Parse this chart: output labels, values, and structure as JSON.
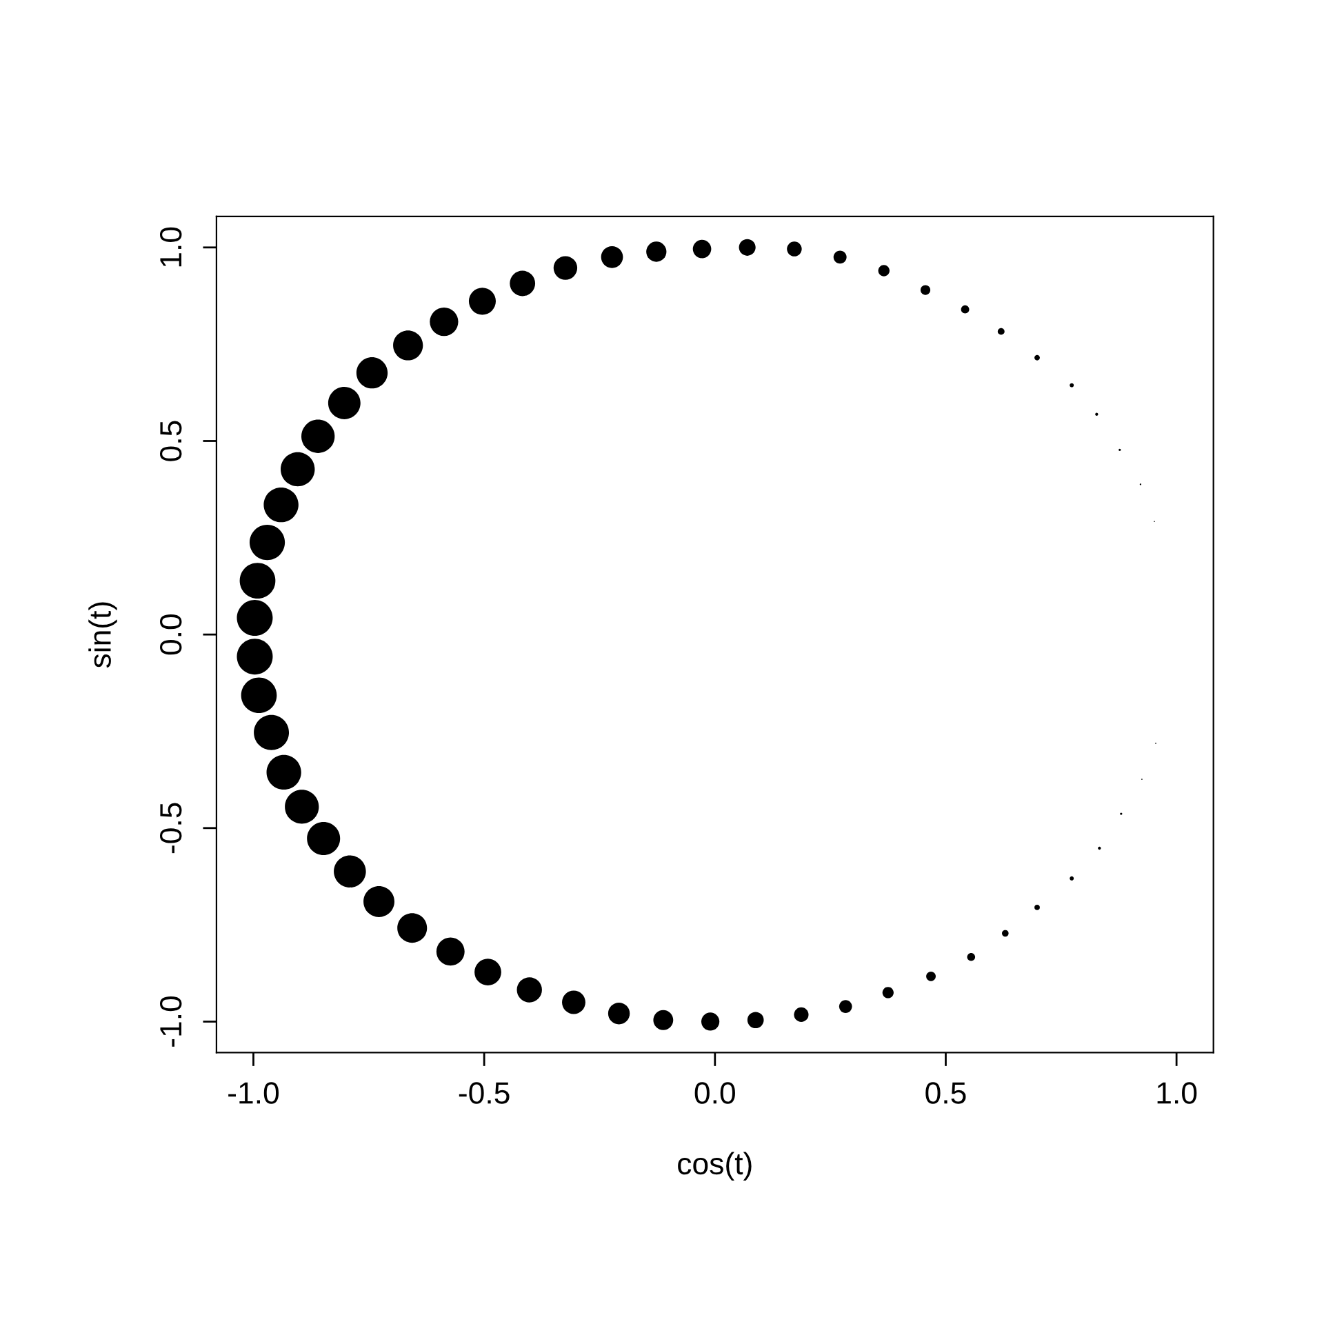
{
  "chart_data": {
    "type": "bubble",
    "xlabel": "cos(t)",
    "ylabel": "sin(t)",
    "color": "#000000",
    "marker": "circle",
    "grid": false,
    "legend": false,
    "x": [
      0.952,
      0.922,
      0.877,
      0.827,
      0.773,
      0.698,
      0.62,
      0.542,
      0.456,
      0.366,
      0.271,
      0.172,
      0.07,
      -0.028,
      -0.127,
      -0.223,
      -0.324,
      -0.417,
      -0.504,
      -0.587,
      -0.665,
      -0.743,
      -0.803,
      -0.86,
      -0.904,
      -0.94,
      -0.97,
      -0.991,
      -0.997,
      -0.997,
      -0.988,
      -0.961,
      -0.934,
      -0.895,
      -0.848,
      -0.791,
      -0.728,
      -0.656,
      -0.573,
      -0.492,
      -0.402,
      -0.306,
      -0.208,
      -0.112,
      -0.01,
      0.088,
      0.187,
      0.283,
      0.375,
      0.468,
      0.555,
      0.629,
      0.698,
      0.773,
      0.833,
      0.88,
      0.925,
      0.955
    ],
    "values": [
      0.292,
      0.388,
      0.477,
      0.569,
      0.644,
      0.715,
      0.783,
      0.84,
      0.89,
      0.94,
      0.975,
      0.996,
      1.0,
      0.996,
      0.989,
      0.975,
      0.947,
      0.907,
      0.861,
      0.808,
      0.747,
      0.676,
      0.598,
      0.512,
      0.427,
      0.335,
      0.238,
      0.139,
      0.043,
      -0.057,
      -0.157,
      -0.253,
      -0.356,
      -0.445,
      -0.527,
      -0.612,
      -0.69,
      -0.758,
      -0.819,
      -0.872,
      -0.918,
      -0.95,
      -0.979,
      -0.996,
      -1.0,
      -0.996,
      -0.982,
      -0.961,
      -0.925,
      -0.883,
      -0.833,
      -0.772,
      -0.705,
      -0.63,
      -0.552,
      -0.463,
      -0.374,
      -0.281
    ],
    "sizes": [
      0.001,
      0.002,
      0.004,
      0.007,
      0.013,
      0.023,
      0.036,
      0.052,
      0.074,
      0.1,
      0.133,
      0.171,
      0.216,
      0.264,
      0.318,
      0.374,
      0.438,
      0.502,
      0.566,
      0.63,
      0.693,
      0.76,
      0.813,
      0.865,
      0.906,
      0.941,
      0.97,
      0.991,
      1,
      1,
      0.988,
      0.961,
      0.935,
      0.898,
      0.854,
      0.802,
      0.746,
      0.686,
      0.619,
      0.557,
      0.491,
      0.426,
      0.365,
      0.309,
      0.255,
      0.208,
      0.165,
      0.129,
      0.098,
      0.071,
      0.05,
      0.034,
      0.023,
      0.013,
      0.007,
      0.004,
      0.001,
      0.001
    ],
    "xlim": [
      -1.08,
      1.08
    ],
    "ylim": [
      -1.08,
      1.08
    ],
    "xticks": [
      {
        "value": -1,
        "label": "-1.0"
      },
      {
        "value": -0.5,
        "label": "-0.5"
      },
      {
        "value": 0,
        "label": "0.0"
      },
      {
        "value": 0.5,
        "label": "0.5"
      },
      {
        "value": 1,
        "label": "1.0"
      }
    ],
    "yticks": [
      {
        "value": -1,
        "label": "-1.0"
      },
      {
        "value": -0.5,
        "label": "-0.5"
      },
      {
        "value": 0,
        "label": "0.0"
      },
      {
        "value": 0.5,
        "label": "0.5"
      },
      {
        "value": 1,
        "label": "1.0"
      }
    ]
  }
}
